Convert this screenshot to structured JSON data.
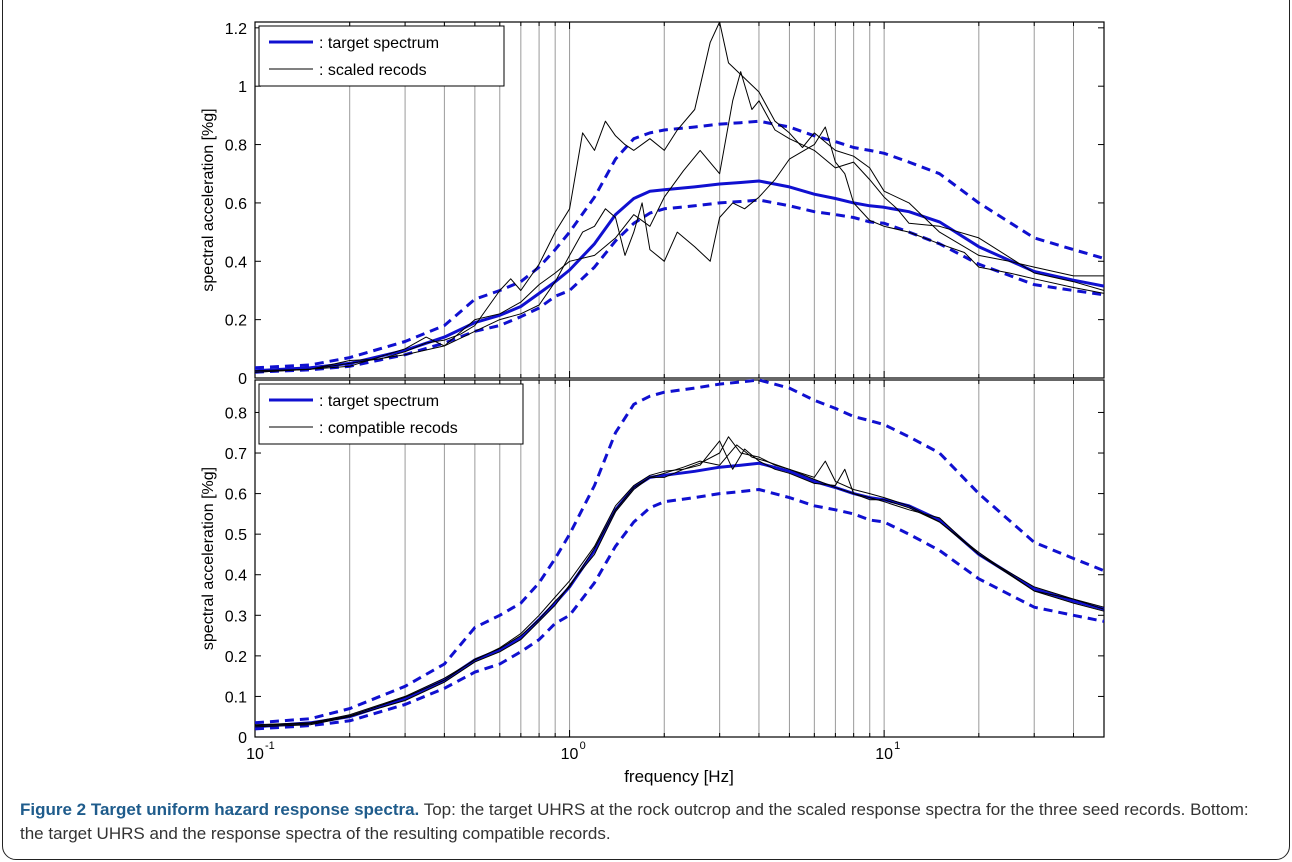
{
  "caption": {
    "label": "Figure 2 Target uniform hazard response spectra.",
    "text": " Top: the target UHRS at the rock outcrop and the scaled response spectra for the three seed records. Bottom: the target UHRS and the response spectra of the resulting compatible records."
  },
  "xlabel": "frequency [Hz]",
  "chart_data": [
    {
      "type": "line",
      "xscale": "log",
      "xlim": [
        0.1,
        50
      ],
      "ylim": [
        0,
        1.22
      ],
      "ylabel": "spectral acceleration [%g]",
      "yticks": [
        0,
        0.2,
        0.4,
        0.6,
        0.8,
        1,
        1.2
      ],
      "ytick_labels": [
        "0",
        "0.2",
        "0.4",
        "0.6",
        "0.8",
        "1",
        "1.2"
      ],
      "grid": "vertical",
      "legend": {
        "position": "top-left",
        "entries": [
          ": target spectrum",
          ": scaled recods"
        ]
      },
      "series": [
        {
          "name": ": target spectrum",
          "role": "target",
          "color": "#1010d0",
          "x": [
            0.1,
            0.15,
            0.2,
            0.3,
            0.4,
            0.5,
            0.6,
            0.7,
            0.8,
            0.9,
            1.0,
            1.2,
            1.4,
            1.6,
            1.8,
            2.0,
            2.5,
            3.0,
            3.5,
            4.0,
            5.0,
            6.0,
            7.0,
            8.0,
            9.0,
            10,
            12,
            15,
            20,
            30,
            40,
            50
          ],
          "y": [
            0.025,
            0.035,
            0.05,
            0.095,
            0.14,
            0.19,
            0.215,
            0.245,
            0.29,
            0.33,
            0.37,
            0.46,
            0.56,
            0.615,
            0.64,
            0.645,
            0.655,
            0.665,
            0.67,
            0.675,
            0.655,
            0.63,
            0.615,
            0.6,
            0.59,
            0.585,
            0.57,
            0.535,
            0.45,
            0.365,
            0.335,
            0.315
          ]
        },
        {
          "name": "",
          "role": "band-upper",
          "color": "#1010d0",
          "x": [
            0.1,
            0.15,
            0.2,
            0.3,
            0.4,
            0.5,
            0.6,
            0.7,
            0.8,
            0.9,
            1.0,
            1.2,
            1.4,
            1.6,
            1.8,
            2.0,
            2.5,
            3.0,
            3.5,
            4.0,
            5.0,
            6.0,
            7.0,
            8.0,
            9.0,
            10,
            12,
            15,
            20,
            30,
            40,
            50
          ],
          "y": [
            0.035,
            0.045,
            0.07,
            0.125,
            0.18,
            0.27,
            0.3,
            0.33,
            0.38,
            0.44,
            0.5,
            0.62,
            0.75,
            0.82,
            0.84,
            0.85,
            0.86,
            0.87,
            0.875,
            0.88,
            0.86,
            0.83,
            0.81,
            0.79,
            0.78,
            0.77,
            0.74,
            0.7,
            0.6,
            0.48,
            0.44,
            0.41
          ]
        },
        {
          "name": "",
          "role": "band-lower",
          "color": "#1010d0",
          "x": [
            0.1,
            0.15,
            0.2,
            0.3,
            0.4,
            0.5,
            0.6,
            0.7,
            0.8,
            0.9,
            1.0,
            1.2,
            1.4,
            1.6,
            1.8,
            2.0,
            2.5,
            3.0,
            3.5,
            4.0,
            5.0,
            6.0,
            7.0,
            8.0,
            9.0,
            10,
            12,
            15,
            20,
            30,
            40,
            50
          ],
          "y": [
            0.02,
            0.028,
            0.04,
            0.08,
            0.12,
            0.16,
            0.18,
            0.21,
            0.24,
            0.28,
            0.3,
            0.38,
            0.47,
            0.53,
            0.565,
            0.58,
            0.59,
            0.6,
            0.605,
            0.61,
            0.59,
            0.57,
            0.56,
            0.55,
            0.535,
            0.53,
            0.5,
            0.46,
            0.39,
            0.32,
            0.3,
            0.285
          ]
        },
        {
          "name": "",
          "role": "record",
          "color": "#000000",
          "x": [
            0.1,
            0.15,
            0.2,
            0.25,
            0.3,
            0.35,
            0.4,
            0.45,
            0.5,
            0.6,
            0.65,
            0.7,
            0.8,
            0.9,
            1.0,
            1.1,
            1.2,
            1.3,
            1.4,
            1.5,
            1.6,
            1.8,
            2.0,
            2.2,
            2.5,
            2.8,
            3.0,
            3.2,
            3.5,
            4.0,
            4.5,
            5.0,
            5.5,
            6.0,
            7.0,
            8.0,
            9.0,
            10,
            12,
            15,
            20,
            25,
            30,
            40,
            50
          ],
          "y": [
            0.02,
            0.03,
            0.06,
            0.065,
            0.09,
            0.12,
            0.13,
            0.15,
            0.18,
            0.3,
            0.34,
            0.3,
            0.39,
            0.5,
            0.58,
            0.84,
            0.78,
            0.88,
            0.83,
            0.8,
            0.78,
            0.82,
            0.78,
            0.85,
            0.92,
            1.15,
            1.22,
            1.08,
            1.04,
            0.98,
            0.88,
            0.84,
            0.79,
            0.84,
            0.78,
            0.76,
            0.72,
            0.64,
            0.6,
            0.5,
            0.42,
            0.4,
            0.38,
            0.35,
            0.35
          ]
        },
        {
          "name": "",
          "role": "record",
          "color": "#000000",
          "x": [
            0.1,
            0.15,
            0.2,
            0.3,
            0.35,
            0.4,
            0.5,
            0.6,
            0.7,
            0.8,
            0.9,
            1.0,
            1.2,
            1.4,
            1.6,
            1.8,
            2.0,
            2.3,
            2.6,
            3.0,
            3.3,
            3.5,
            3.8,
            4.0,
            4.5,
            5.0,
            6.0,
            7.0,
            8.0,
            9.0,
            10,
            11,
            12,
            15,
            20,
            30,
            40,
            50
          ],
          "y": [
            0.025,
            0.03,
            0.04,
            0.1,
            0.14,
            0.11,
            0.2,
            0.22,
            0.26,
            0.32,
            0.36,
            0.4,
            0.42,
            0.48,
            0.56,
            0.52,
            0.62,
            0.71,
            0.78,
            0.7,
            0.95,
            1.05,
            0.92,
            0.95,
            0.85,
            0.82,
            0.78,
            0.72,
            0.74,
            0.68,
            0.62,
            0.58,
            0.53,
            0.52,
            0.48,
            0.36,
            0.33,
            0.3
          ]
        },
        {
          "name": "",
          "role": "record",
          "color": "#000000",
          "x": [
            0.1,
            0.15,
            0.2,
            0.3,
            0.4,
            0.5,
            0.6,
            0.7,
            0.8,
            0.9,
            1.0,
            1.1,
            1.2,
            1.3,
            1.4,
            1.5,
            1.6,
            1.7,
            1.8,
            2.0,
            2.2,
            2.5,
            2.8,
            3.0,
            3.3,
            3.6,
            4.0,
            4.5,
            5.0,
            6.0,
            6.5,
            7.0,
            7.5,
            8.0,
            9.0,
            10,
            12,
            15,
            18,
            20,
            25,
            30,
            40,
            50
          ],
          "y": [
            0.02,
            0.03,
            0.05,
            0.08,
            0.11,
            0.16,
            0.2,
            0.22,
            0.25,
            0.33,
            0.42,
            0.5,
            0.52,
            0.58,
            0.55,
            0.42,
            0.5,
            0.6,
            0.44,
            0.4,
            0.5,
            0.45,
            0.4,
            0.55,
            0.6,
            0.58,
            0.62,
            0.68,
            0.75,
            0.8,
            0.86,
            0.74,
            0.7,
            0.6,
            0.54,
            0.52,
            0.5,
            0.46,
            0.43,
            0.38,
            0.36,
            0.34,
            0.31,
            0.29
          ]
        }
      ]
    },
    {
      "type": "line",
      "xscale": "log",
      "xlim": [
        0.1,
        50
      ],
      "ylim": [
        0,
        0.88
      ],
      "ylabel": "spectral acceleration [%g]",
      "xlabel": "frequency [Hz]",
      "yticks": [
        0,
        0.1,
        0.2,
        0.3,
        0.4,
        0.5,
        0.6,
        0.7,
        0.8
      ],
      "ytick_labels": [
        "0",
        "0.1",
        "0.2",
        "0.3",
        "0.4",
        "0.5",
        "0.6",
        "0.7",
        "0.8"
      ],
      "xtick_labels": [
        "10",
        "10",
        "10"
      ],
      "xtick_exponents": [
        "-1",
        "0",
        "1"
      ],
      "xticks": [
        0.1,
        1,
        10
      ],
      "grid": "vertical",
      "legend": {
        "position": "top-left",
        "entries": [
          ": target spectrum",
          ": compatible recods"
        ]
      },
      "series": [
        {
          "name": ": target spectrum",
          "role": "target",
          "color": "#1010d0",
          "x": [
            0.1,
            0.15,
            0.2,
            0.3,
            0.4,
            0.5,
            0.6,
            0.7,
            0.8,
            0.9,
            1.0,
            1.2,
            1.4,
            1.6,
            1.8,
            2.0,
            2.5,
            3.0,
            3.5,
            4.0,
            5.0,
            6.0,
            7.0,
            8.0,
            9.0,
            10,
            12,
            15,
            20,
            30,
            40,
            50
          ],
          "y": [
            0.025,
            0.035,
            0.05,
            0.095,
            0.14,
            0.19,
            0.215,
            0.245,
            0.29,
            0.33,
            0.37,
            0.46,
            0.56,
            0.615,
            0.64,
            0.645,
            0.655,
            0.665,
            0.67,
            0.675,
            0.655,
            0.63,
            0.615,
            0.6,
            0.59,
            0.585,
            0.57,
            0.535,
            0.45,
            0.365,
            0.335,
            0.315
          ]
        },
        {
          "name": "",
          "role": "band-upper",
          "color": "#1010d0",
          "x": [
            0.1,
            0.15,
            0.2,
            0.3,
            0.4,
            0.5,
            0.6,
            0.7,
            0.8,
            0.9,
            1.0,
            1.2,
            1.4,
            1.6,
            1.8,
            2.0,
            2.5,
            3.0,
            3.5,
            4.0,
            5.0,
            6.0,
            7.0,
            8.0,
            9.0,
            10,
            12,
            15,
            20,
            30,
            40,
            50
          ],
          "y": [
            0.035,
            0.045,
            0.07,
            0.125,
            0.18,
            0.27,
            0.3,
            0.33,
            0.38,
            0.44,
            0.5,
            0.62,
            0.75,
            0.82,
            0.84,
            0.85,
            0.86,
            0.87,
            0.875,
            0.88,
            0.86,
            0.83,
            0.81,
            0.79,
            0.78,
            0.77,
            0.74,
            0.7,
            0.6,
            0.48,
            0.44,
            0.41
          ]
        },
        {
          "name": "",
          "role": "band-lower",
          "color": "#1010d0",
          "x": [
            0.1,
            0.15,
            0.2,
            0.3,
            0.4,
            0.5,
            0.6,
            0.7,
            0.8,
            0.9,
            1.0,
            1.2,
            1.4,
            1.6,
            1.8,
            2.0,
            2.5,
            3.0,
            3.5,
            4.0,
            5.0,
            6.0,
            7.0,
            8.0,
            9.0,
            10,
            12,
            15,
            20,
            30,
            40,
            50
          ],
          "y": [
            0.02,
            0.028,
            0.04,
            0.08,
            0.12,
            0.16,
            0.18,
            0.21,
            0.24,
            0.28,
            0.3,
            0.38,
            0.47,
            0.53,
            0.565,
            0.58,
            0.59,
            0.6,
            0.605,
            0.61,
            0.59,
            0.57,
            0.56,
            0.55,
            0.535,
            0.53,
            0.5,
            0.46,
            0.39,
            0.32,
            0.3,
            0.285
          ]
        },
        {
          "name": "",
          "role": "record",
          "color": "#000000",
          "x": [
            0.1,
            0.15,
            0.2,
            0.3,
            0.4,
            0.5,
            0.6,
            0.7,
            0.8,
            0.9,
            1.0,
            1.2,
            1.4,
            1.6,
            1.8,
            2.0,
            2.3,
            2.6,
            3.0,
            3.2,
            3.5,
            4.0,
            4.5,
            5.0,
            6.0,
            6.5,
            7.0,
            8.0,
            9.0,
            10,
            12,
            15,
            20,
            30,
            40,
            50
          ],
          "y": [
            0.03,
            0.035,
            0.055,
            0.1,
            0.145,
            0.19,
            0.22,
            0.255,
            0.3,
            0.345,
            0.385,
            0.47,
            0.57,
            0.62,
            0.645,
            0.655,
            0.66,
            0.675,
            0.7,
            0.74,
            0.7,
            0.69,
            0.67,
            0.66,
            0.64,
            0.68,
            0.63,
            0.61,
            0.6,
            0.59,
            0.57,
            0.53,
            0.45,
            0.37,
            0.34,
            0.32
          ]
        },
        {
          "name": "",
          "role": "record",
          "color": "#000000",
          "x": [
            0.1,
            0.15,
            0.2,
            0.3,
            0.4,
            0.5,
            0.6,
            0.7,
            0.8,
            0.9,
            1.0,
            1.2,
            1.4,
            1.6,
            1.8,
            2.0,
            2.3,
            2.6,
            3.0,
            3.3,
            3.6,
            4.0,
            4.5,
            5.0,
            6.0,
            7.0,
            7.5,
            8.0,
            9.0,
            10,
            12,
            15,
            20,
            30,
            40,
            50
          ],
          "y": [
            0.025,
            0.03,
            0.05,
            0.09,
            0.135,
            0.185,
            0.21,
            0.24,
            0.285,
            0.325,
            0.375,
            0.45,
            0.555,
            0.61,
            0.64,
            0.64,
            0.66,
            0.67,
            0.73,
            0.66,
            0.71,
            0.68,
            0.66,
            0.65,
            0.625,
            0.62,
            0.66,
            0.6,
            0.59,
            0.58,
            0.56,
            0.54,
            0.45,
            0.36,
            0.33,
            0.31
          ]
        },
        {
          "name": "",
          "role": "record",
          "color": "#000000",
          "x": [
            0.1,
            0.15,
            0.2,
            0.3,
            0.4,
            0.5,
            0.6,
            0.7,
            0.8,
            0.9,
            1.0,
            1.2,
            1.4,
            1.6,
            1.8,
            2.0,
            2.3,
            2.6,
            3.0,
            3.4,
            3.8,
            4.2,
            5.0,
            6.0,
            7.0,
            8.0,
            9.0,
            10,
            12,
            15,
            20,
            30,
            40,
            50
          ],
          "y": [
            0.028,
            0.033,
            0.052,
            0.098,
            0.14,
            0.192,
            0.218,
            0.25,
            0.29,
            0.335,
            0.37,
            0.465,
            0.56,
            0.615,
            0.64,
            0.65,
            0.665,
            0.68,
            0.67,
            0.72,
            0.69,
            0.68,
            0.66,
            0.635,
            0.615,
            0.6,
            0.585,
            0.585,
            0.565,
            0.53,
            0.455,
            0.36,
            0.34,
            0.315
          ]
        }
      ]
    }
  ]
}
